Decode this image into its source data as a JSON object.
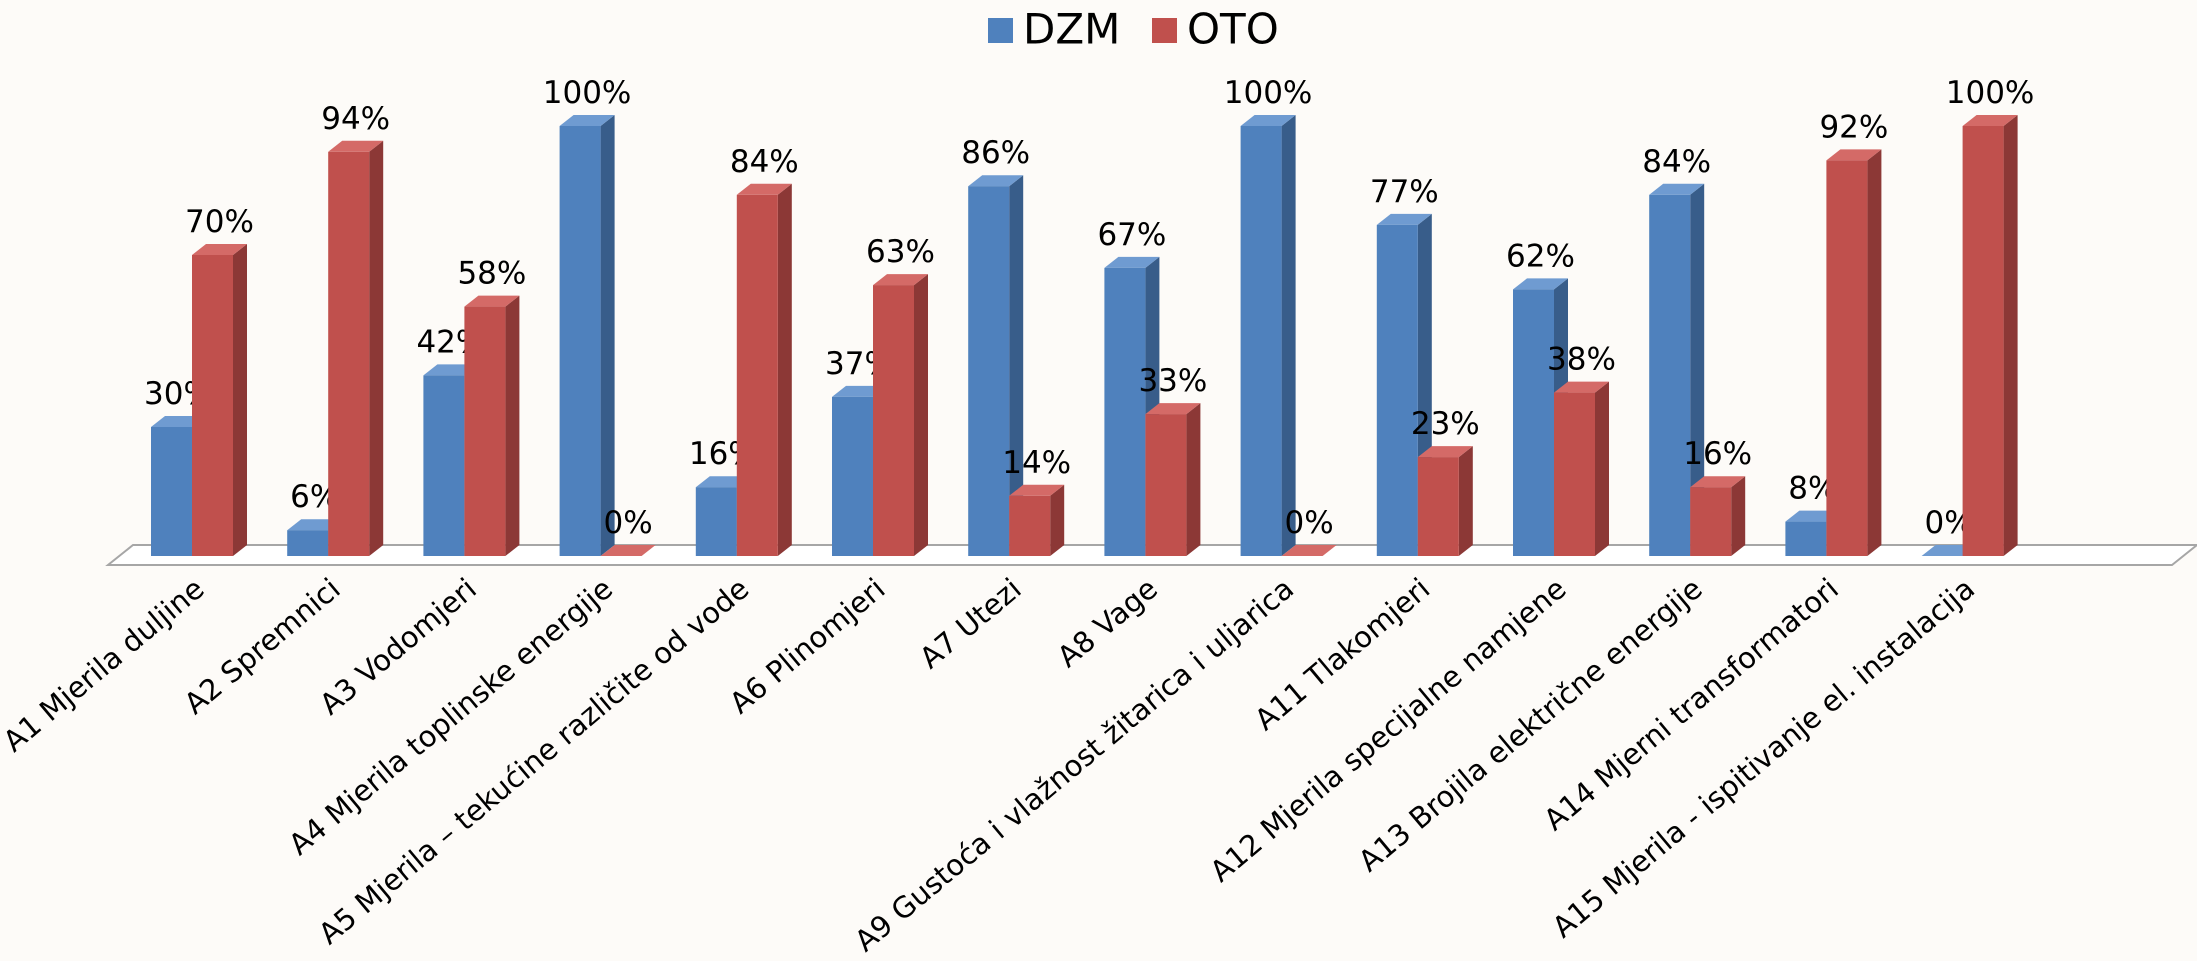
{
  "chart_data": {
    "type": "bar3d",
    "categories": [
      "A1 Mjerila duljine",
      "A2 Spremnici",
      "A3 Vodomjeri",
      "A4 Mjerila toplinske energije",
      "A5 Mjerila – tekućine različite od vode",
      "A6 Plinomjeri",
      "A7 Utezi",
      "A8 Vage",
      "A9 Gustoća i vlažnost žitarica i uljarica",
      "A11 Tlakomjeri",
      "A12 Mjerila specijalne namjene",
      "A13 Brojila električne energije",
      "A14 Mjerni transformatori",
      "A15 Mjerila - ispitivanje el. instalacija"
    ],
    "series": [
      {
        "name": "DZM",
        "color": "#4f81bd",
        "side": "#385d8a",
        "top": "#6f9bd1",
        "values": [
          30,
          6,
          42,
          100,
          16,
          37,
          86,
          67,
          100,
          77,
          62,
          84,
          8,
          0
        ],
        "value_labels": [
          "30%",
          "6%",
          "42%",
          "100%",
          "16%",
          "37%",
          "86%",
          "67%",
          "100%",
          "77%",
          "62%",
          "84%",
          "8%",
          "0%"
        ]
      },
      {
        "name": "OTO",
        "color": "#c0504d",
        "side": "#8c3836",
        "top": "#d46a67",
        "values": [
          70,
          94,
          58,
          0,
          84,
          63,
          14,
          33,
          0,
          23,
          38,
          16,
          92,
          100
        ],
        "value_labels": [
          "70%",
          "94%",
          "58%",
          "0%",
          "84%",
          "63%",
          "14%",
          "33%",
          "0%",
          "23%",
          "38%",
          "16%",
          "92%",
          "100%"
        ]
      }
    ],
    "ylim": [
      0,
      100
    ],
    "legend": "top"
  }
}
